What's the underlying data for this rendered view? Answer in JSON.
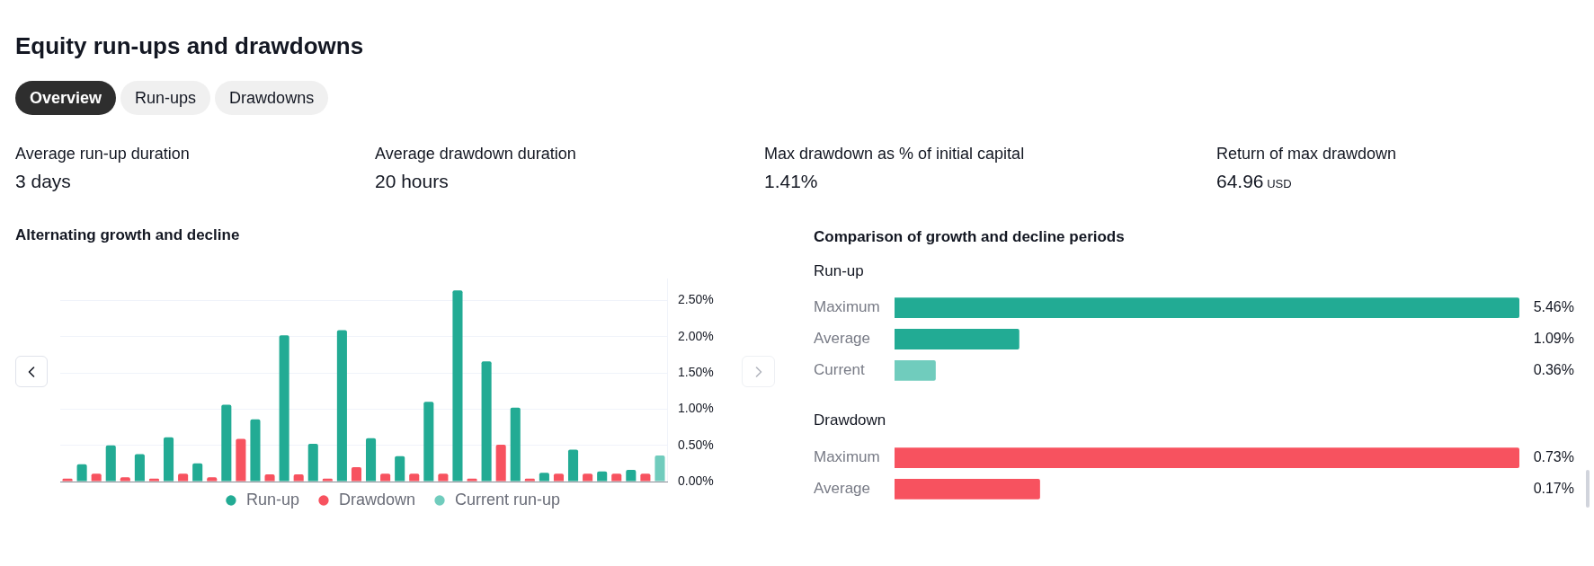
{
  "chart_data": [
    {
      "type": "other",
      "title": "Equity run-ups and drawdowns",
      "annotations": [
        "Overview",
        "Run-ups",
        "Drawdowns"
      ]
    },
    {
      "type": "other",
      "annotations": [
        "Average run-up duration",
        "3 days",
        "Average drawdown duration",
        "20 hours",
        "Max drawdown as % of initial capital",
        "1.41%",
        "Return of max drawdown",
        "64.96 USD"
      ]
    },
    {
      "type": "bar",
      "title": "Alternating growth and decline",
      "categories": [
        null,
        null,
        null,
        null,
        null,
        null,
        null,
        null,
        null,
        null,
        null,
        null,
        null,
        null,
        null,
        null,
        null,
        null,
        null,
        null,
        null,
        null,
        null,
        null,
        null,
        null,
        null,
        null,
        null,
        null,
        null,
        null,
        null,
        null,
        null,
        null,
        null,
        null,
        null,
        null,
        null,
        null
      ],
      "series": [
        {
          "name": "Run-up",
          "color": "#22ab94",
          "values": [
            null,
            0.24,
            null,
            0.5,
            null,
            0.38,
            null,
            0.61,
            null,
            0.25,
            null,
            1.06,
            null,
            0.86,
            null,
            2.02,
            null,
            0.52,
            null,
            2.09,
            null,
            0.6,
            null,
            0.35,
            null,
            1.1,
            null,
            2.64,
            null,
            1.66,
            null,
            1.02,
            null,
            0.12,
            null,
            0.44,
            null,
            0.14,
            null,
            0.16,
            null,
            null
          ]
        },
        {
          "name": "Drawdown",
          "color": "#f7525f",
          "values": [
            0.04,
            null,
            0.11,
            null,
            0.06,
            null,
            0.04,
            null,
            0.11,
            null,
            0.06,
            null,
            0.59,
            null,
            0.1,
            null,
            0.1,
            null,
            0.04,
            null,
            0.2,
            null,
            0.11,
            null,
            0.11,
            null,
            0.11,
            null,
            0.04,
            null,
            0.51,
            null,
            0.04,
            null,
            0.11,
            null,
            0.11,
            null,
            0.11,
            null,
            0.11,
            null
          ]
        },
        {
          "name": "Current run-up",
          "color": "#70ccbd",
          "values": [
            null,
            null,
            null,
            null,
            null,
            null,
            null,
            null,
            null,
            null,
            null,
            null,
            null,
            null,
            null,
            null,
            null,
            null,
            null,
            null,
            null,
            null,
            null,
            null,
            null,
            null,
            null,
            null,
            null,
            null,
            null,
            null,
            null,
            null,
            null,
            null,
            null,
            null,
            null,
            null,
            null,
            0.36
          ]
        }
      ],
      "ylim": [
        0,
        2.8
      ],
      "yticks": [
        {
          "value": 0,
          "label": "0.00%"
        },
        {
          "value": 0.5,
          "label": "0.50%"
        },
        {
          "value": 1,
          "label": "1.00%"
        },
        {
          "value": 1.5,
          "label": "1.50%"
        },
        {
          "value": 2,
          "label": "2.00%"
        },
        {
          "value": 2.5,
          "label": "2.50%"
        }
      ],
      "grid": "y",
      "legend": "bottom",
      "tick_labels": "y"
    },
    {
      "type": "bar",
      "orientation": "horizontal",
      "title": "Comparison of growth and decline periods",
      "subtitle": "Run-up",
      "categories": [
        "Maximum",
        "Average",
        "Current"
      ],
      "values": [
        5.46,
        1.09,
        0.36
      ],
      "colors": [
        "#22ab94",
        "#22ab94",
        "#70ccbd"
      ],
      "value_labels": [
        "5.46%",
        "1.09%",
        "0.36%"
      ]
    },
    {
      "type": "bar",
      "orientation": "horizontal",
      "subtitle": "Drawdown",
      "categories": [
        "Maximum",
        "Average"
      ],
      "values": [
        0.73,
        0.17
      ],
      "colors": [
        "#f7525f",
        "#f7525f"
      ],
      "value_labels": [
        "0.73%",
        "0.17%"
      ]
    }
  ]
}
